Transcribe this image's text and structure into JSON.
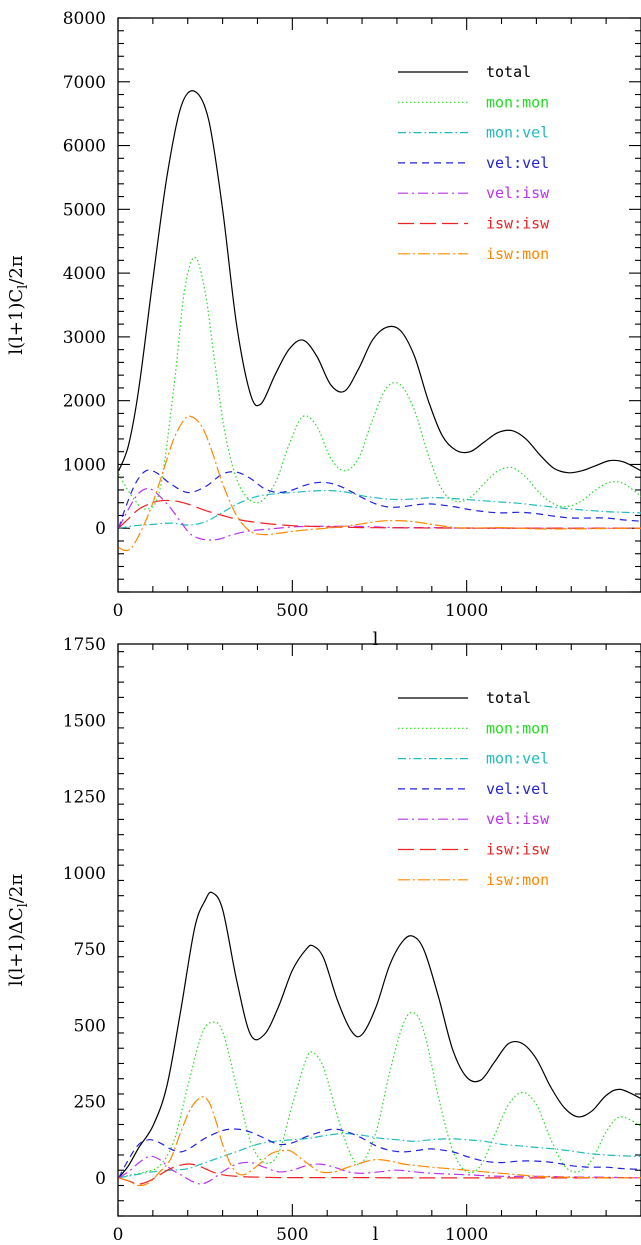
{
  "chart_data": [
    {
      "type": "line",
      "ylabel": "l(l+1)C_l/2π",
      "ylabel_parts": {
        "pre": "l(l+1)C",
        "sub": "l",
        "post": "/2π"
      },
      "xlabel": "l",
      "xlim": [
        0,
        1500
      ],
      "ylim": [
        -1000,
        8000
      ],
      "xticks": [
        0,
        500,
        1000
      ],
      "xtick_labels": [
        "0",
        "500",
        "1000"
      ],
      "yticks": [
        0,
        1000,
        2000,
        3000,
        4000,
        5000,
        6000,
        7000,
        8000
      ],
      "ytick_labels": [
        "0",
        "1000",
        "2000",
        "3000",
        "4000",
        "5000",
        "6000",
        "7000",
        "8000"
      ],
      "legend_position": "top-right",
      "series": [
        {
          "name": "total",
          "color": "#000000",
          "dash": "solid",
          "x": [
            2,
            30,
            60,
            100,
            140,
            180,
            220,
            260,
            300,
            340,
            380,
            410,
            450,
            490,
            530,
            570,
            610,
            650,
            690,
            730,
            770,
            810,
            850,
            890,
            930,
            970,
            1010,
            1050,
            1090,
            1130,
            1170,
            1210,
            1250,
            1290,
            1330,
            1370,
            1410,
            1450,
            1500
          ],
          "y": [
            900,
            1300,
            2200,
            3900,
            5500,
            6600,
            6850,
            6400,
            5000,
            3200,
            2100,
            1950,
            2400,
            2800,
            2950,
            2700,
            2250,
            2150,
            2500,
            2950,
            3150,
            3100,
            2700,
            2000,
            1450,
            1220,
            1200,
            1350,
            1500,
            1530,
            1400,
            1150,
            940,
            870,
            900,
            980,
            1060,
            1040,
            900
          ]
        },
        {
          "name": "mon:mon",
          "color": "#22dd22",
          "dash": "1.5,2.5",
          "x": [
            2,
            40,
            80,
            120,
            160,
            190,
            220,
            250,
            280,
            310,
            350,
            400,
            450,
            490,
            530,
            570,
            610,
            650,
            690,
            730,
            770,
            810,
            850,
            890,
            930,
            970,
            1010,
            1050,
            1090,
            1130,
            1170,
            1210,
            1250,
            1290,
            1330,
            1370,
            1410,
            1450,
            1500
          ],
          "y": [
            850,
            500,
            300,
            600,
            2200,
            3700,
            4250,
            3700,
            2500,
            1400,
            650,
            400,
            700,
            1300,
            1750,
            1600,
            1100,
            900,
            1100,
            1700,
            2200,
            2250,
            1850,
            1150,
            600,
            420,
            480,
            700,
            900,
            950,
            800,
            550,
            380,
            340,
            430,
            600,
            720,
            700,
            500
          ]
        },
        {
          "name": "mon:vel",
          "color": "#22bbbb",
          "dash": "8,3,1.5,3",
          "x": [
            2,
            50,
            100,
            150,
            200,
            250,
            300,
            350,
            400,
            450,
            500,
            550,
            600,
            650,
            700,
            750,
            800,
            850,
            900,
            950,
            1000,
            1050,
            1100,
            1150,
            1200,
            1250,
            1300,
            1350,
            1400,
            1450,
            1500
          ],
          "y": [
            0,
            40,
            60,
            80,
            50,
            100,
            250,
            400,
            500,
            540,
            560,
            580,
            590,
            570,
            510,
            470,
            450,
            460,
            480,
            470,
            450,
            430,
            410,
            390,
            360,
            330,
            300,
            280,
            260,
            250,
            240
          ]
        },
        {
          "name": "vel:vel",
          "color": "#2222dd",
          "dash": "7,5",
          "x": [
            2,
            20,
            50,
            80,
            110,
            150,
            200,
            250,
            300,
            340,
            380,
            420,
            460,
            500,
            540,
            580,
            620,
            660,
            700,
            740,
            780,
            820,
            860,
            900,
            960,
            1000,
            1050,
            1100,
            1150,
            1200,
            1250,
            1300,
            1350,
            1400,
            1450,
            1500
          ],
          "y": [
            0,
            300,
            700,
            900,
            870,
            700,
            560,
            650,
            850,
            880,
            780,
            620,
            560,
            600,
            680,
            720,
            690,
            600,
            480,
            380,
            330,
            340,
            370,
            380,
            340,
            300,
            260,
            240,
            250,
            230,
            190,
            160,
            160,
            160,
            130,
            110
          ]
        },
        {
          "name": "vel:isw",
          "color": "#bb33ee",
          "dash": "10,4,2,4",
          "x": [
            2,
            30,
            60,
            90,
            120,
            150,
            180,
            210,
            250,
            290,
            330,
            380,
            440,
            500,
            560,
            620,
            680,
            740,
            800,
            900,
            1000,
            1100,
            1200,
            1300,
            1400,
            1500
          ],
          "y": [
            0,
            300,
            550,
            620,
            500,
            320,
            100,
            -100,
            -180,
            -170,
            -100,
            -40,
            -10,
            20,
            30,
            30,
            30,
            20,
            10,
            10,
            0,
            0,
            0,
            0,
            0,
            0
          ]
        },
        {
          "name": "isw:isw",
          "color": "#ee2222",
          "dash": "16,6",
          "x": [
            2,
            30,
            60,
            90,
            120,
            160,
            200,
            250,
            300,
            350,
            400,
            450,
            500,
            550,
            600,
            650,
            700,
            750,
            800,
            900,
            1000,
            1100,
            1200,
            1300,
            1400,
            1500
          ],
          "y": [
            0,
            150,
            300,
            380,
            430,
            430,
            380,
            280,
            200,
            130,
            90,
            60,
            40,
            30,
            20,
            15,
            10,
            8,
            6,
            4,
            3,
            2,
            1,
            1,
            0,
            0
          ]
        },
        {
          "name": "isw:mon",
          "color": "#ff8800",
          "dash": "12,3,2,3",
          "x": [
            2,
            20,
            40,
            70,
            100,
            130,
            160,
            190,
            210,
            240,
            270,
            300,
            340,
            380,
            420,
            460,
            500,
            550,
            600,
            650,
            700,
            750,
            800,
            850,
            900,
            950,
            1000,
            1100,
            1200,
            1300,
            1400,
            1500
          ],
          "y": [
            -300,
            -350,
            -300,
            0,
            400,
            900,
            1400,
            1700,
            1750,
            1600,
            1200,
            700,
            200,
            -50,
            -100,
            -80,
            -50,
            -20,
            0,
            30,
            70,
            110,
            120,
            100,
            60,
            20,
            0,
            10,
            -10,
            -10,
            -5,
            0
          ]
        }
      ]
    },
    {
      "type": "line",
      "ylabel": "l(l+1)ΔC_l/2π",
      "ylabel_parts": {
        "pre": "l(l+1)ΔC",
        "sub": "l",
        "post": "/2π"
      },
      "xlabel": "l",
      "xlim": [
        0,
        1500
      ],
      "ylim": [
        -125,
        1750
      ],
      "xticks": [
        0,
        500,
        1000
      ],
      "xtick_labels": [
        "0",
        "500",
        "1000"
      ],
      "yticks": [
        0,
        250,
        500,
        750,
        1000,
        1250,
        1500,
        1750
      ],
      "ytick_labels": [
        "0",
        "250",
        "500",
        "750",
        "1000",
        "1250",
        "1500",
        "1750"
      ],
      "legend_position": "top-right",
      "series": [
        {
          "name": "total",
          "color": "#000000",
          "dash": "solid",
          "x": [
            2,
            30,
            60,
            100,
            140,
            180,
            220,
            250,
            270,
            300,
            340,
            380,
            420,
            460,
            500,
            540,
            560,
            590,
            630,
            670,
            700,
            740,
            780,
            820,
            850,
            880,
            920,
            960,
            1000,
            1040,
            1080,
            1120,
            1160,
            1200,
            1240,
            1280,
            1320,
            1360,
            1400,
            1440,
            1500
          ],
          "y": [
            0,
            40,
            100,
            170,
            300,
            550,
            820,
            910,
            935,
            880,
            650,
            470,
            470,
            560,
            680,
            750,
            760,
            720,
            580,
            480,
            470,
            560,
            700,
            780,
            790,
            740,
            590,
            420,
            330,
            320,
            380,
            440,
            440,
            390,
            300,
            230,
            200,
            220,
            270,
            290,
            260
          ]
        },
        {
          "name": "mon:mon",
          "color": "#22dd22",
          "dash": "1.5,2.5",
          "x": [
            2,
            40,
            80,
            120,
            160,
            200,
            240,
            270,
            300,
            340,
            380,
            420,
            460,
            500,
            540,
            560,
            590,
            630,
            670,
            700,
            740,
            780,
            820,
            850,
            880,
            920,
            960,
            1000,
            1040,
            1080,
            1120,
            1160,
            1200,
            1240,
            1280,
            1320,
            1360,
            1400,
            1440,
            1500
          ],
          "y": [
            0,
            10,
            20,
            40,
            120,
            300,
            470,
            510,
            480,
            300,
            120,
            50,
            80,
            240,
            390,
            410,
            360,
            200,
            70,
            50,
            150,
            350,
            510,
            540,
            470,
            260,
            90,
            20,
            40,
            140,
            240,
            280,
            240,
            130,
            40,
            20,
            60,
            150,
            200,
            170
          ]
        },
        {
          "name": "mon:vel",
          "color": "#22bbbb",
          "dash": "8,3,1.5,3",
          "x": [
            2,
            50,
            100,
            150,
            200,
            250,
            300,
            350,
            400,
            450,
            500,
            550,
            600,
            650,
            700,
            750,
            800,
            850,
            900,
            950,
            1000,
            1050,
            1100,
            1150,
            1200,
            1250,
            1300,
            1350,
            1400,
            1450,
            1500
          ],
          "y": [
            0,
            10,
            20,
            25,
            30,
            50,
            70,
            90,
            110,
            120,
            125,
            130,
            140,
            145,
            140,
            130,
            125,
            120,
            125,
            128,
            125,
            120,
            110,
            105,
            100,
            95,
            88,
            80,
            75,
            72,
            70
          ]
        },
        {
          "name": "vel:vel",
          "color": "#2222dd",
          "dash": "7,5",
          "x": [
            2,
            30,
            60,
            90,
            120,
            150,
            180,
            210,
            250,
            300,
            340,
            380,
            420,
            460,
            500,
            540,
            580,
            620,
            660,
            700,
            740,
            780,
            820,
            860,
            900,
            960,
            1000,
            1050,
            1100,
            1150,
            1200,
            1250,
            1300,
            1350,
            1400,
            1450,
            1500
          ],
          "y": [
            0,
            60,
            110,
            125,
            115,
            95,
            85,
            100,
            130,
            155,
            160,
            150,
            130,
            110,
            115,
            135,
            150,
            160,
            150,
            130,
            105,
            90,
            85,
            90,
            95,
            85,
            70,
            55,
            50,
            55,
            55,
            50,
            40,
            35,
            35,
            30,
            28
          ]
        },
        {
          "name": "vel:isw",
          "color": "#bb33ee",
          "dash": "10,4,2,4",
          "x": [
            2,
            30,
            60,
            90,
            120,
            150,
            180,
            210,
            240,
            270,
            300,
            340,
            380,
            420,
            460,
            500,
            540,
            580,
            620,
            660,
            700,
            750,
            800,
            850,
            900,
            1000,
            1100,
            1200,
            1300,
            1400,
            1500
          ],
          "y": [
            0,
            20,
            50,
            70,
            60,
            30,
            10,
            -10,
            -20,
            -5,
            20,
            45,
            50,
            35,
            20,
            25,
            40,
            45,
            35,
            20,
            15,
            20,
            25,
            20,
            15,
            10,
            5,
            5,
            3,
            2,
            0
          ]
        },
        {
          "name": "isw:isw",
          "color": "#ee2222",
          "dash": "16,6",
          "x": [
            2,
            30,
            60,
            90,
            120,
            150,
            180,
            210,
            240,
            270,
            300,
            340,
            380,
            420,
            460,
            500,
            550,
            600,
            650,
            700,
            800,
            900,
            1000,
            1100,
            1200,
            1300,
            1400,
            1500
          ],
          "y": [
            0,
            -10,
            -20,
            -10,
            10,
            30,
            42,
            45,
            35,
            20,
            10,
            5,
            3,
            2,
            1,
            1,
            1,
            1,
            1,
            1,
            0,
            0,
            0,
            0,
            0,
            0,
            0,
            0
          ]
        },
        {
          "name": "isw:mon",
          "color": "#ff8800",
          "dash": "12,3,2,3",
          "x": [
            2,
            30,
            60,
            90,
            120,
            150,
            180,
            210,
            240,
            260,
            280,
            300,
            330,
            360,
            400,
            440,
            480,
            500,
            540,
            580,
            620,
            660,
            700,
            740,
            780,
            820,
            860,
            900,
            950,
            1000,
            1050,
            1100,
            1150,
            1200,
            1250,
            1300,
            1400,
            1500
          ],
          "y": [
            0,
            -10,
            -25,
            -15,
            20,
            60,
            150,
            230,
            265,
            250,
            190,
            110,
            30,
            10,
            40,
            80,
            90,
            85,
            50,
            20,
            20,
            35,
            50,
            60,
            55,
            45,
            40,
            35,
            30,
            25,
            20,
            15,
            10,
            5,
            3,
            2,
            0,
            0
          ]
        }
      ]
    }
  ]
}
